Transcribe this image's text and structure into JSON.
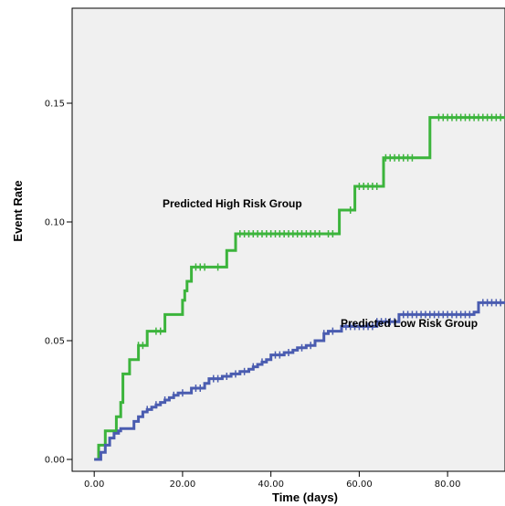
{
  "chart_data": {
    "type": "line",
    "xlabel": "Time (days)",
    "ylabel": "Event Rate",
    "xlim": [
      -5,
      93
    ],
    "ylim": [
      -0.005,
      0.19
    ],
    "x_ticks": [
      "0.00",
      "20.00",
      "40.00",
      "60.00",
      "80.00"
    ],
    "y_ticks": [
      "0.00",
      "0.05",
      "0.10",
      "0.15"
    ],
    "grid": false,
    "annotations": [
      "Predicted High Risk Group",
      "Predicted Low Risk Group"
    ],
    "series": [
      {
        "color": "#3cb43c",
        "step": true,
        "x": [
          0,
          1,
          2.5,
          5,
          6,
          6.5,
          8,
          10,
          12,
          16,
          20,
          20.5,
          21,
          22,
          26,
          30,
          32,
          40,
          50,
          55.5,
          59,
          61,
          65.5,
          70,
          76,
          93
        ],
        "y": [
          0,
          0.006,
          0.012,
          0.018,
          0.024,
          0.036,
          0.042,
          0.048,
          0.054,
          0.061,
          0.067,
          0.071,
          0.075,
          0.081,
          0.081,
          0.088,
          0.095,
          0.095,
          0.095,
          0.105,
          0.115,
          0.115,
          0.127,
          0.127,
          0.144,
          0.144
        ],
        "censor_x": [
          10,
          11,
          14,
          15,
          23,
          24,
          25,
          28,
          33,
          34,
          35,
          36,
          37,
          38,
          39,
          40,
          41,
          42,
          43,
          44,
          45,
          46,
          47,
          48,
          49,
          50,
          51,
          53,
          54,
          58,
          60,
          61,
          62,
          63,
          64,
          66,
          67,
          68,
          69,
          70,
          71,
          72,
          78,
          79,
          80,
          81,
          82,
          83,
          84,
          85,
          86,
          87,
          88,
          89,
          90,
          91,
          92
        ]
      },
      {
        "color": "#4a5cb0",
        "step": true,
        "x": [
          0,
          1.5,
          2.5,
          3.5,
          4.5,
          5.5,
          6,
          9,
          10,
          11,
          12,
          13,
          14,
          15,
          16,
          17,
          18,
          19,
          22,
          25,
          26,
          29,
          31,
          33,
          35,
          36,
          37,
          38,
          39,
          40,
          43,
          45,
          46,
          48,
          50,
          52,
          53,
          56,
          61,
          64,
          69,
          70,
          86,
          87,
          93
        ],
        "y": [
          0,
          0.003,
          0.006,
          0.009,
          0.011,
          0.012,
          0.013,
          0.016,
          0.018,
          0.02,
          0.021,
          0.022,
          0.023,
          0.024,
          0.025,
          0.026,
          0.027,
          0.028,
          0.03,
          0.032,
          0.034,
          0.035,
          0.036,
          0.037,
          0.038,
          0.039,
          0.04,
          0.041,
          0.042,
          0.044,
          0.045,
          0.046,
          0.047,
          0.048,
          0.05,
          0.053,
          0.054,
          0.056,
          0.056,
          0.058,
          0.061,
          0.061,
          0.062,
          0.066,
          0.066
        ],
        "censor_x": [
          12,
          14,
          16,
          18,
          20,
          23,
          24,
          27,
          28,
          30,
          32,
          34,
          36,
          38,
          41,
          42,
          44,
          47,
          49,
          52,
          54,
          57,
          58,
          59,
          60,
          61,
          62,
          63,
          64,
          65,
          66,
          67,
          68,
          70,
          71,
          72,
          73,
          74,
          75,
          76,
          77,
          78,
          79,
          80,
          81,
          82,
          83,
          84,
          85,
          88,
          89,
          90,
          91,
          92
        ]
      }
    ]
  }
}
